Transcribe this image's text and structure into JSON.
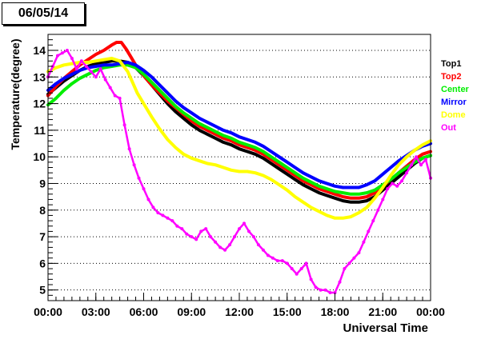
{
  "date_label": "06/05/14",
  "chart_data": {
    "type": "line",
    "title": "",
    "xlabel": "Universal Time",
    "ylabel": "Temperature(degree)",
    "xlim": [
      0,
      24
    ],
    "ylim": [
      4.6,
      14.6
    ],
    "grid": "horizontal dotted",
    "legend_position": "right",
    "x_ticks": [
      {
        "value": 0,
        "label": "00:00"
      },
      {
        "value": 3,
        "label": "03:00"
      },
      {
        "value": 6,
        "label": "06:00"
      },
      {
        "value": 9,
        "label": "09:00"
      },
      {
        "value": 12,
        "label": "12:00"
      },
      {
        "value": 15,
        "label": "15:00"
      },
      {
        "value": 18,
        "label": "18:00"
      },
      {
        "value": 21,
        "label": "21:00"
      },
      {
        "value": 24,
        "label": "00:00"
      }
    ],
    "y_ticks": [
      5,
      6,
      7,
      8,
      9,
      10,
      11,
      12,
      13,
      14
    ],
    "series": [
      {
        "name": "Top1",
        "color": "#000000",
        "x": [
          0,
          0.5,
          1,
          1.5,
          2,
          2.5,
          3,
          3.5,
          4,
          4.5,
          5,
          5.5,
          6,
          6.5,
          7,
          7.5,
          8,
          8.5,
          9,
          9.5,
          10,
          10.5,
          11,
          11.5,
          12,
          12.5,
          13,
          13.5,
          14,
          14.5,
          15,
          15.5,
          16,
          16.5,
          17,
          17.5,
          18,
          18.5,
          19,
          19.5,
          20,
          20.5,
          21,
          21.5,
          22,
          22.5,
          23,
          23.5,
          24
        ],
        "y": [
          12.35,
          12.6,
          12.85,
          13.05,
          13.25,
          13.4,
          13.5,
          13.55,
          13.6,
          13.6,
          13.55,
          13.35,
          13.05,
          12.7,
          12.35,
          12.0,
          11.7,
          11.45,
          11.2,
          11.0,
          10.85,
          10.7,
          10.55,
          10.45,
          10.3,
          10.2,
          10.1,
          9.95,
          9.75,
          9.55,
          9.35,
          9.15,
          8.95,
          8.8,
          8.65,
          8.55,
          8.45,
          8.35,
          8.3,
          8.3,
          8.35,
          8.5,
          8.75,
          9.0,
          9.25,
          9.5,
          9.75,
          9.95,
          10.05
        ]
      },
      {
        "name": "Top2",
        "color": "#ff0000",
        "x": [
          0,
          0.5,
          1,
          1.5,
          2,
          2.5,
          3,
          3.5,
          4,
          4.3,
          4.6,
          4.9,
          5.2,
          5.5,
          6,
          6.5,
          7,
          7.5,
          8,
          8.5,
          9,
          9.5,
          10,
          10.5,
          11,
          11.5,
          12,
          12.5,
          13,
          13.5,
          14,
          14.5,
          15,
          15.5,
          16,
          16.5,
          17,
          17.5,
          18,
          18.5,
          19,
          19.5,
          20,
          20.5,
          21,
          21.5,
          22,
          22.5,
          23,
          23.5,
          24
        ],
        "y": [
          12.3,
          12.65,
          12.95,
          13.2,
          13.45,
          13.65,
          13.85,
          14.0,
          14.2,
          14.3,
          14.3,
          14.05,
          13.75,
          13.45,
          13.05,
          12.7,
          12.4,
          12.1,
          11.85,
          11.6,
          11.35,
          11.15,
          11.0,
          10.85,
          10.7,
          10.6,
          10.45,
          10.35,
          10.25,
          10.1,
          9.9,
          9.7,
          9.5,
          9.3,
          9.1,
          8.95,
          8.8,
          8.7,
          8.6,
          8.5,
          8.45,
          8.45,
          8.5,
          8.65,
          8.9,
          9.15,
          9.4,
          9.65,
          9.9,
          10.1,
          10.2
        ]
      },
      {
        "name": "Center",
        "color": "#00ee00",
        "x": [
          0,
          0.5,
          1,
          1.5,
          2,
          2.5,
          3,
          3.5,
          4,
          4.5,
          5,
          5.5,
          6,
          6.5,
          7,
          7.5,
          8,
          8.5,
          9,
          9.5,
          10,
          10.5,
          11,
          11.5,
          12,
          12.5,
          13,
          13.5,
          14,
          14.5,
          15,
          15.5,
          16,
          16.5,
          17,
          17.5,
          18,
          18.5,
          19,
          19.5,
          20,
          20.5,
          21,
          21.5,
          22,
          22.5,
          23,
          23.5,
          24
        ],
        "y": [
          11.95,
          12.2,
          12.5,
          12.75,
          12.95,
          13.1,
          13.25,
          13.35,
          13.4,
          13.45,
          13.45,
          13.35,
          13.1,
          12.8,
          12.5,
          12.2,
          11.9,
          11.65,
          11.45,
          11.25,
          11.1,
          10.95,
          10.8,
          10.7,
          10.55,
          10.45,
          10.35,
          10.2,
          10.0,
          9.8,
          9.6,
          9.4,
          9.2,
          9.05,
          8.9,
          8.8,
          8.7,
          8.65,
          8.6,
          8.6,
          8.65,
          8.75,
          8.95,
          9.15,
          9.4,
          9.6,
          9.8,
          9.95,
          10.05
        ]
      },
      {
        "name": "Mirror",
        "color": "#0000ff",
        "x": [
          0,
          0.5,
          1,
          1.5,
          2,
          2.5,
          3,
          3.5,
          4,
          4.5,
          5,
          5.5,
          6,
          6.5,
          7,
          7.5,
          8,
          8.5,
          9,
          9.5,
          10,
          10.5,
          11,
          11.5,
          12,
          12.5,
          13,
          13.5,
          14,
          14.5,
          15,
          15.5,
          16,
          16.5,
          17,
          17.5,
          18,
          18.5,
          19,
          19.5,
          20,
          20.5,
          21,
          21.5,
          22,
          22.5,
          23,
          23.5,
          24
        ],
        "y": [
          12.5,
          12.75,
          12.95,
          13.1,
          13.25,
          13.35,
          13.4,
          13.45,
          13.45,
          13.5,
          13.55,
          13.45,
          13.25,
          13.0,
          12.7,
          12.4,
          12.1,
          11.85,
          11.65,
          11.45,
          11.3,
          11.15,
          11.0,
          10.9,
          10.75,
          10.65,
          10.55,
          10.4,
          10.2,
          10.0,
          9.8,
          9.6,
          9.4,
          9.25,
          9.1,
          9.0,
          8.9,
          8.85,
          8.85,
          8.85,
          8.95,
          9.1,
          9.35,
          9.6,
          9.85,
          10.05,
          10.25,
          10.4,
          10.5
        ]
      },
      {
        "name": "Dome",
        "color": "#ffff00",
        "x": [
          0,
          0.5,
          1,
          1.5,
          2,
          2.5,
          3,
          3.5,
          4,
          4.5,
          5,
          5.3,
          5.6,
          6,
          6.5,
          7,
          7.5,
          8,
          8.5,
          9,
          9.5,
          10,
          10.5,
          11,
          11.5,
          12,
          12.5,
          13,
          13.5,
          14,
          14.5,
          15,
          15.5,
          16,
          16.5,
          17,
          17.5,
          18,
          18.5,
          19,
          19.5,
          20,
          20.5,
          21,
          21.5,
          22,
          22.5,
          23,
          23.5,
          24
        ],
        "y": [
          13.2,
          13.35,
          13.45,
          13.5,
          13.55,
          13.55,
          13.6,
          13.65,
          13.7,
          13.6,
          13.2,
          12.8,
          12.4,
          12.0,
          11.5,
          11.05,
          10.65,
          10.35,
          10.1,
          9.95,
          9.85,
          9.75,
          9.7,
          9.6,
          9.5,
          9.45,
          9.45,
          9.4,
          9.3,
          9.15,
          8.95,
          8.75,
          8.5,
          8.3,
          8.1,
          7.95,
          7.8,
          7.7,
          7.7,
          7.75,
          7.9,
          8.1,
          8.45,
          8.85,
          9.3,
          9.7,
          10.0,
          10.25,
          10.45,
          10.6
        ]
      },
      {
        "name": "Out",
        "color": "#ff00ff",
        "x": [
          0,
          0.3,
          0.6,
          0.9,
          1.2,
          1.5,
          1.8,
          2.1,
          2.4,
          2.7,
          3.0,
          3.3,
          3.6,
          3.9,
          4.2,
          4.5,
          4.8,
          5.1,
          5.4,
          5.7,
          6.0,
          6.3,
          6.6,
          6.9,
          7.2,
          7.5,
          7.8,
          8.1,
          8.4,
          8.7,
          9.0,
          9.3,
          9.6,
          9.9,
          10.2,
          10.5,
          10.8,
          11.1,
          11.4,
          11.7,
          12.0,
          12.3,
          12.6,
          12.9,
          13.2,
          13.5,
          13.8,
          14.1,
          14.4,
          14.7,
          15.0,
          15.3,
          15.6,
          15.9,
          16.2,
          16.5,
          16.8,
          17.1,
          17.4,
          17.7,
          18.0,
          18.3,
          18.6,
          18.9,
          19.2,
          19.5,
          19.8,
          20.1,
          20.4,
          20.7,
          21.0,
          21.3,
          21.6,
          21.9,
          22.2,
          22.5,
          22.8,
          23.1,
          23.4,
          23.7,
          24.0
        ],
        "y": [
          13.0,
          13.4,
          13.8,
          13.9,
          14.0,
          13.7,
          13.3,
          13.6,
          13.4,
          13.2,
          13.0,
          13.3,
          12.9,
          12.6,
          12.3,
          12.2,
          11.2,
          10.3,
          9.7,
          9.2,
          8.8,
          8.4,
          8.1,
          7.9,
          7.8,
          7.7,
          7.6,
          7.4,
          7.3,
          7.1,
          7.0,
          6.9,
          7.2,
          7.3,
          7.0,
          6.8,
          6.6,
          6.5,
          6.7,
          7.0,
          7.3,
          7.5,
          7.2,
          7.0,
          6.7,
          6.5,
          6.3,
          6.2,
          6.1,
          6.1,
          6.0,
          5.8,
          5.6,
          5.8,
          6.0,
          5.4,
          5.1,
          5.0,
          5.0,
          4.9,
          4.9,
          5.3,
          5.8,
          6.0,
          6.2,
          6.4,
          6.8,
          7.2,
          7.6,
          8.0,
          8.4,
          8.8,
          9.0,
          8.9,
          9.1,
          9.4,
          9.7,
          10.0,
          9.7,
          9.9,
          9.2
        ]
      }
    ]
  }
}
